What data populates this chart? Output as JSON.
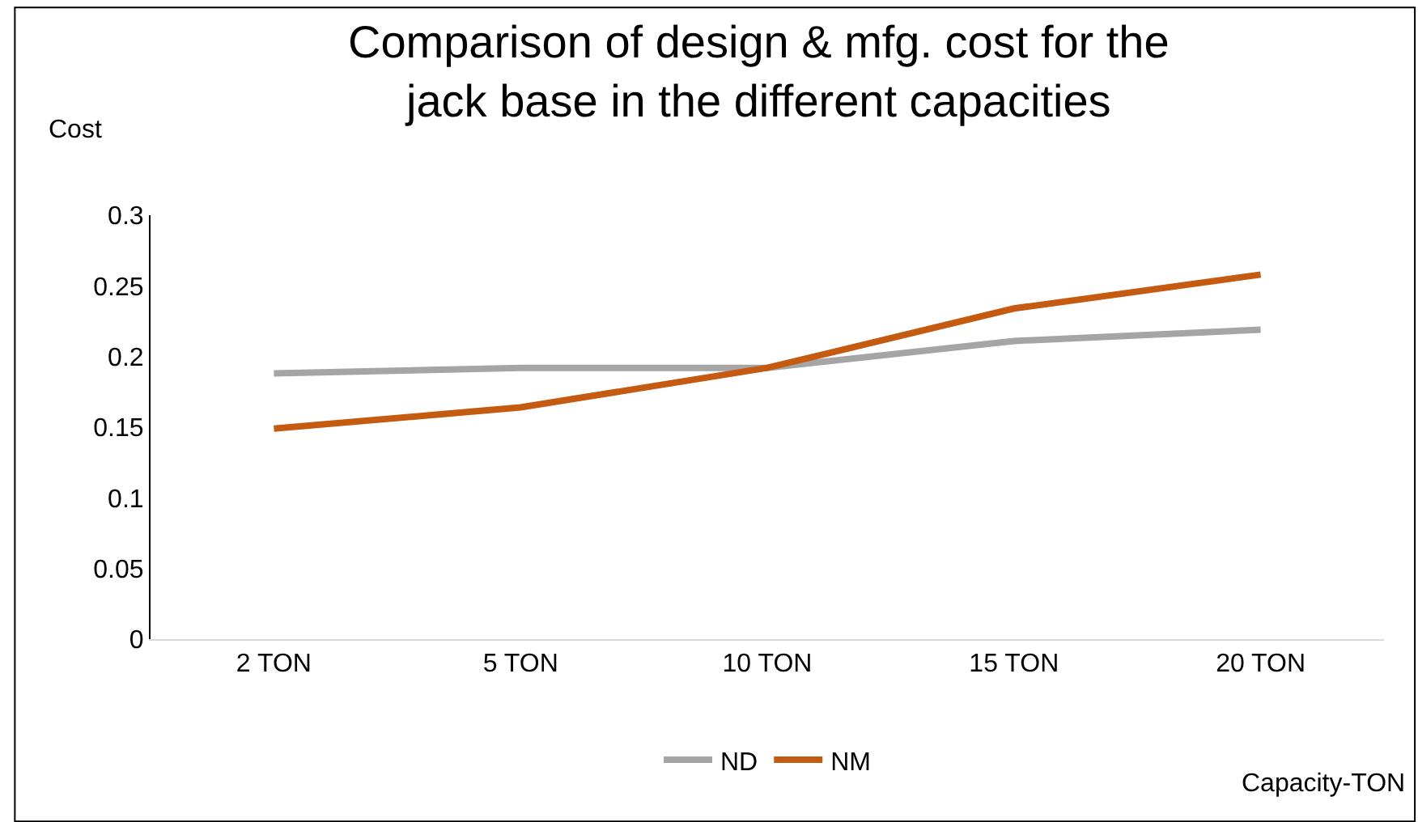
{
  "chart_data": {
    "type": "line",
    "title": "Comparison of design & mfg. cost for the jack base in the different capacities",
    "xlabel": "Capacity-TON",
    "ylabel": "Cost",
    "categories": [
      "2 TON",
      "5 TON",
      "10 TON",
      "15 TON",
      "20 TON"
    ],
    "series": [
      {
        "name": "ND",
        "color": "#a5a5a5",
        "values": [
          0.188,
          0.192,
          0.192,
          0.211,
          0.219
        ]
      },
      {
        "name": "NM",
        "color": "#c55a11",
        "values": [
          0.149,
          0.164,
          0.192,
          0.234,
          0.258
        ]
      }
    ],
    "ylim": [
      0,
      0.3
    ],
    "yticks": [
      0,
      0.05,
      0.1,
      0.15,
      0.2,
      0.25,
      0.3
    ],
    "grid": false,
    "legend": "bottom",
    "marker": "none",
    "line_style": "solid"
  }
}
